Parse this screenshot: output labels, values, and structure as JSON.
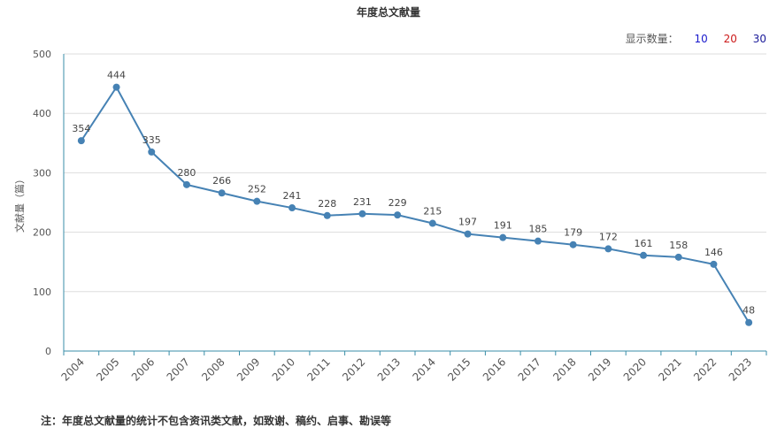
{
  "header": {
    "title": "年度总文献量"
  },
  "controls": {
    "label": "显示数量：",
    "options": [
      {
        "label": "10",
        "color": "#1a1acc"
      },
      {
        "label": "20",
        "color": "#cc1a1a"
      },
      {
        "label": "30",
        "color": "#1a1a99"
      }
    ]
  },
  "footnote": "注：年度总文献量的统计不包含资讯类文献，如致谢、稿约、启事、勘误等",
  "colors": {
    "line": "#4682b4",
    "axis": "#3a8ea8",
    "grid": "#dddddd",
    "text": "#555555"
  },
  "chart_data": {
    "type": "line",
    "title": "年度总文献量",
    "xlabel": "",
    "ylabel": "文献量（篇）",
    "x": [
      "2004",
      "2005",
      "2006",
      "2007",
      "2008",
      "2009",
      "2010",
      "2011",
      "2012",
      "2013",
      "2014",
      "2015",
      "2016",
      "2017",
      "2018",
      "2019",
      "2020",
      "2021",
      "2022",
      "2023"
    ],
    "values": [
      354,
      444,
      335,
      280,
      266,
      252,
      241,
      228,
      231,
      229,
      215,
      197,
      191,
      185,
      179,
      172,
      161,
      158,
      146,
      48
    ],
    "yticks": [
      0,
      100,
      200,
      300,
      400,
      500
    ],
    "ylim": [
      0,
      500
    ],
    "grid": true
  }
}
